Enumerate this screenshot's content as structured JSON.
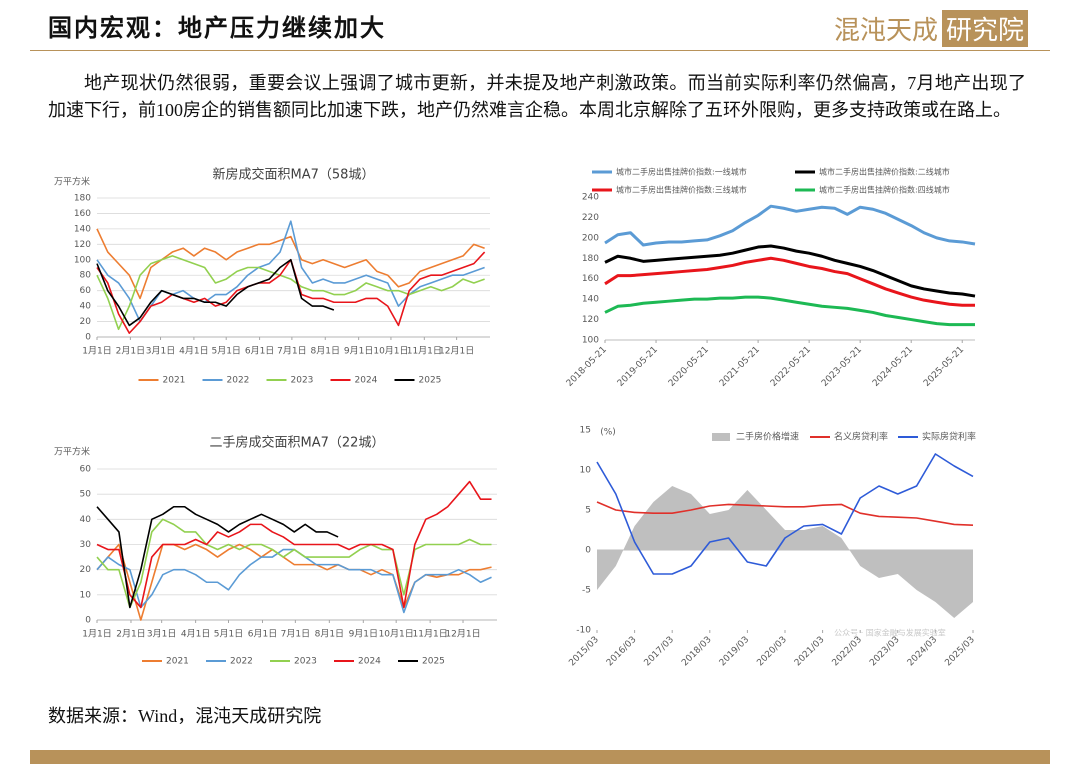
{
  "header": {
    "title": "国内宏观：地产压力继续加大",
    "logo": "混沌天成",
    "logo_box": "研究院"
  },
  "body": {
    "paragraph": "地产现状仍然很弱，重要会议上强调了城市更新，并未提及地产刺激政策。而当前实际利率仍然偏高，7月地产出现了加速下行，前100房企的销售额同比加速下跌，地产仍然难言企稳。本周北京解除了五环外限购，更多支持政策或在路上。"
  },
  "footer": {
    "source": "数据来源：Wind，混沌天成研究院"
  },
  "chart_data": [
    {
      "type": "line",
      "title": "新房成交面积MA7（58城）",
      "y_label": "万平方米",
      "grid": true,
      "legend": "bottom",
      "x": [
        0,
        10,
        20,
        30,
        40,
        50,
        60,
        70,
        80,
        90,
        100,
        110,
        120,
        130,
        140,
        150,
        160,
        170,
        180,
        190,
        200,
        210,
        220,
        230,
        240,
        250,
        260,
        270,
        280,
        290,
        300,
        310,
        320,
        330,
        340,
        350,
        360
      ],
      "xlim": [
        0,
        365
      ],
      "xticks": [
        {
          "value": 0,
          "label": "1月1日"
        },
        {
          "value": 31,
          "label": "2月1日"
        },
        {
          "value": 59,
          "label": "3月1日"
        },
        {
          "value": 90,
          "label": "4月1日"
        },
        {
          "value": 120,
          "label": "5月1日"
        },
        {
          "value": 151,
          "label": "6月1日"
        },
        {
          "value": 181,
          "label": "7月1日"
        },
        {
          "value": 212,
          "label": "8月1日"
        },
        {
          "value": 243,
          "label": "9月1日"
        },
        {
          "value": 273,
          "label": "10月1日"
        },
        {
          "value": 304,
          "label": "11月1日"
        },
        {
          "value": 334,
          "label": "12月1日"
        }
      ],
      "ylim": [
        0,
        180
      ],
      "yticks": [
        0,
        20,
        40,
        60,
        80,
        100,
        120,
        140,
        160,
        180
      ],
      "series": [
        {
          "name": "2021",
          "color": "#ED7D31",
          "values": [
            140,
            110,
            95,
            80,
            50,
            90,
            100,
            110,
            115,
            105,
            115,
            110,
            100,
            110,
            115,
            120,
            120,
            125,
            130,
            100,
            95,
            100,
            95,
            90,
            95,
            100,
            85,
            80,
            65,
            70,
            85,
            90,
            95,
            100,
            105,
            120,
            115
          ]
        },
        {
          "name": "2022",
          "color": "#5B9BD5",
          "values": [
            100,
            80,
            70,
            50,
            20,
            40,
            60,
            55,
            60,
            50,
            45,
            55,
            55,
            65,
            80,
            90,
            95,
            110,
            150,
            90,
            70,
            75,
            70,
            70,
            75,
            80,
            75,
            70,
            40,
            55,
            65,
            70,
            75,
            80,
            80,
            85,
            90
          ]
        },
        {
          "name": "2023",
          "color": "#92D050",
          "values": [
            80,
            50,
            10,
            40,
            80,
            95,
            100,
            105,
            100,
            95,
            90,
            70,
            75,
            85,
            90,
            90,
            85,
            80,
            75,
            65,
            60,
            60,
            55,
            55,
            60,
            70,
            65,
            60,
            60,
            55,
            60,
            65,
            60,
            65,
            75,
            70,
            75
          ]
        },
        {
          "name": "2024",
          "color": "#E8151B",
          "values": [
            90,
            70,
            30,
            5,
            20,
            40,
            45,
            55,
            50,
            45,
            50,
            40,
            45,
            60,
            65,
            70,
            70,
            80,
            100,
            55,
            50,
            50,
            45,
            45,
            45,
            50,
            50,
            40,
            15,
            60,
            75,
            80,
            80,
            85,
            90,
            95,
            110
          ]
        },
        {
          "name": "2025",
          "color": "#000000",
          "values": [
            95,
            60,
            40,
            15,
            25,
            45,
            60,
            55,
            50,
            50,
            45,
            45,
            40,
            55,
            65,
            70,
            75,
            90,
            100,
            50,
            40,
            40,
            35,
            null,
            null,
            null,
            null,
            null,
            null,
            null,
            null,
            null,
            null,
            null,
            null,
            null,
            null
          ]
        }
      ]
    },
    {
      "type": "line",
      "title": "二手房成交面积MA7（22城）",
      "y_label": "万平方米",
      "grid": true,
      "legend": "bottom",
      "x": [
        0,
        10,
        20,
        30,
        40,
        50,
        60,
        70,
        80,
        90,
        100,
        110,
        120,
        130,
        140,
        150,
        160,
        170,
        180,
        190,
        200,
        210,
        220,
        230,
        240,
        250,
        260,
        270,
        280,
        290,
        300,
        310,
        320,
        330,
        340,
        350,
        360
      ],
      "xlim": [
        0,
        365
      ],
      "xticks": [
        {
          "value": 0,
          "label": "1月1日"
        },
        {
          "value": 31,
          "label": "2月1日"
        },
        {
          "value": 59,
          "label": "3月1日"
        },
        {
          "value": 90,
          "label": "4月1日"
        },
        {
          "value": 120,
          "label": "5月1日"
        },
        {
          "value": 151,
          "label": "6月1日"
        },
        {
          "value": 181,
          "label": "7月1日"
        },
        {
          "value": 212,
          "label": "8月1日"
        },
        {
          "value": 243,
          "label": "9月1日"
        },
        {
          "value": 273,
          "label": "10月1日"
        },
        {
          "value": 304,
          "label": "11月1日"
        },
        {
          "value": 334,
          "label": "12月1日"
        }
      ],
      "ylim": [
        0,
        60
      ],
      "yticks": [
        0,
        10,
        20,
        30,
        40,
        50,
        60
      ],
      "series": [
        {
          "name": "2021",
          "color": "#ED7D31",
          "values": [
            20,
            25,
            30,
            15,
            0,
            15,
            30,
            30,
            28,
            30,
            28,
            25,
            28,
            30,
            28,
            25,
            28,
            25,
            22,
            22,
            22,
            20,
            22,
            20,
            20,
            18,
            20,
            18,
            5,
            15,
            18,
            17,
            18,
            18,
            20,
            20,
            21
          ]
        },
        {
          "name": "2022",
          "color": "#5B9BD5",
          "values": [
            20,
            25,
            22,
            20,
            5,
            10,
            18,
            20,
            20,
            18,
            15,
            15,
            12,
            18,
            22,
            25,
            25,
            28,
            28,
            25,
            22,
            22,
            22,
            20,
            20,
            20,
            18,
            18,
            3,
            15,
            18,
            18,
            18,
            20,
            18,
            15,
            17
          ]
        },
        {
          "name": "2023",
          "color": "#92D050",
          "values": [
            25,
            20,
            20,
            5,
            15,
            35,
            40,
            38,
            35,
            35,
            30,
            28,
            30,
            28,
            30,
            30,
            28,
            25,
            28,
            25,
            25,
            25,
            25,
            25,
            28,
            30,
            28,
            28,
            10,
            28,
            30,
            30,
            30,
            30,
            32,
            30,
            30
          ]
        },
        {
          "name": "2024",
          "color": "#E8151B",
          "values": [
            30,
            28,
            28,
            10,
            5,
            25,
            30,
            30,
            30,
            32,
            30,
            35,
            33,
            35,
            38,
            38,
            35,
            33,
            30,
            30,
            30,
            30,
            30,
            28,
            30,
            30,
            30,
            28,
            5,
            30,
            40,
            42,
            45,
            50,
            55,
            48,
            48
          ]
        },
        {
          "name": "2025",
          "color": "#000000",
          "values": [
            45,
            40,
            35,
            5,
            20,
            40,
            42,
            45,
            45,
            42,
            40,
            38,
            35,
            38,
            40,
            42,
            40,
            38,
            35,
            38,
            35,
            35,
            33,
            null,
            null,
            null,
            null,
            null,
            null,
            null,
            null,
            null,
            null,
            null,
            null,
            null,
            null
          ]
        }
      ]
    },
    {
      "type": "line",
      "grid": false,
      "legend": "top",
      "x": [
        "2018-05-21",
        "2018-08-21",
        "2018-11-21",
        "2019-02-21",
        "2019-05-21",
        "2019-08-21",
        "2019-11-21",
        "2020-02-21",
        "2020-05-21",
        "2020-08-21",
        "2020-11-21",
        "2021-02-21",
        "2021-05-21",
        "2021-08-21",
        "2021-11-21",
        "2022-02-21",
        "2022-05-21",
        "2022-08-21",
        "2022-11-21",
        "2023-02-21",
        "2023-05-21",
        "2023-08-21",
        "2023-11-21",
        "2024-02-21",
        "2024-05-21",
        "2024-08-21",
        "2024-11-21",
        "2025-02-21",
        "2025-05-21",
        "2025-08-21"
      ],
      "xticks": [
        "2018-05-21",
        "2019-05-21",
        "2020-05-21",
        "2021-05-21",
        "2022-05-21",
        "2023-05-21",
        "2024-05-21",
        "2025-05-21"
      ],
      "ylim": [
        100,
        240
      ],
      "yticks": [
        100,
        120,
        140,
        160,
        180,
        200,
        220,
        240
      ],
      "series": [
        {
          "name": "城市二手房出售挂牌价指数:一线城市",
          "color": "#5B9BD5",
          "values": [
            195,
            203,
            205,
            193,
            195,
            196,
            196,
            197,
            198,
            202,
            207,
            215,
            222,
            231,
            229,
            226,
            228,
            230,
            229,
            223,
            230,
            228,
            224,
            218,
            212,
            205,
            200,
            197,
            196,
            194
          ]
        },
        {
          "name": "城市二手房出售挂牌价指数:二线城市",
          "color": "#000000",
          "values": [
            176,
            182,
            180,
            177,
            178,
            179,
            180,
            181,
            182,
            183,
            185,
            188,
            191,
            192,
            190,
            187,
            185,
            182,
            178,
            175,
            172,
            168,
            163,
            158,
            153,
            150,
            148,
            146,
            145,
            143
          ]
        },
        {
          "name": "城市二手房出售挂牌价指数:三线城市",
          "color": "#E8151B",
          "values": [
            155,
            163,
            163,
            164,
            165,
            166,
            167,
            168,
            169,
            171,
            173,
            176,
            178,
            180,
            178,
            175,
            172,
            170,
            167,
            165,
            160,
            155,
            150,
            146,
            142,
            139,
            137,
            135,
            134,
            134
          ]
        },
        {
          "name": "城市二手房出售挂牌价指数:四线城市",
          "color": "#1DB954",
          "values": [
            127,
            133,
            134,
            136,
            137,
            138,
            139,
            140,
            140,
            141,
            141,
            142,
            142,
            141,
            139,
            137,
            135,
            133,
            132,
            131,
            129,
            127,
            124,
            122,
            120,
            118,
            116,
            115,
            115,
            115
          ]
        }
      ]
    },
    {
      "type": "line",
      "y_label": "(%)",
      "grid": false,
      "legend": "top",
      "watermark": "公众号 · 国家金融与发展实验室",
      "x": [
        "2015/03",
        "2015/09",
        "2016/03",
        "2016/09",
        "2017/03",
        "2017/09",
        "2018/03",
        "2018/09",
        "2019/03",
        "2019/09",
        "2020/03",
        "2020/09",
        "2021/03",
        "2021/09",
        "2022/03",
        "2022/09",
        "2023/03",
        "2023/09",
        "2024/03",
        "2024/09",
        "2025/03"
      ],
      "xticks": [
        "2015/03",
        "2016/03",
        "2017/03",
        "2018/03",
        "2019/03",
        "2020/03",
        "2021/03",
        "2022/03",
        "2023/03",
        "2024/03",
        "2025/03"
      ],
      "ylim": [
        -10,
        15
      ],
      "yticks": [
        -10,
        -5,
        0,
        5,
        10,
        15
      ],
      "series": [
        {
          "name": "二手房价格增速",
          "color": "#BFBFBF",
          "kind": "area",
          "values": [
            -5,
            -2,
            3,
            6,
            8,
            7,
            4.5,
            5,
            7.5,
            5,
            2.5,
            2.5,
            3,
            1.5,
            -2,
            -3.5,
            -3,
            -5,
            -6.5,
            -8.5,
            -6.5
          ]
        },
        {
          "name": "名义房贷利率",
          "color": "#E0302A",
          "values": [
            6,
            5,
            4.7,
            4.6,
            4.6,
            5,
            5.5,
            5.7,
            5.6,
            5.5,
            5.4,
            5.4,
            5.6,
            5.7,
            4.6,
            4.2,
            4.1,
            4,
            3.6,
            3.2,
            3.1
          ]
        },
        {
          "name": "实际房贷利率",
          "color": "#2E5BD8",
          "values": [
            11,
            7,
            1,
            -3,
            -3,
            -2,
            1,
            1.5,
            -1.5,
            -2,
            1.5,
            3,
            3.2,
            2,
            6.5,
            8,
            7,
            8,
            12,
            10.5,
            9.2
          ]
        }
      ]
    }
  ]
}
